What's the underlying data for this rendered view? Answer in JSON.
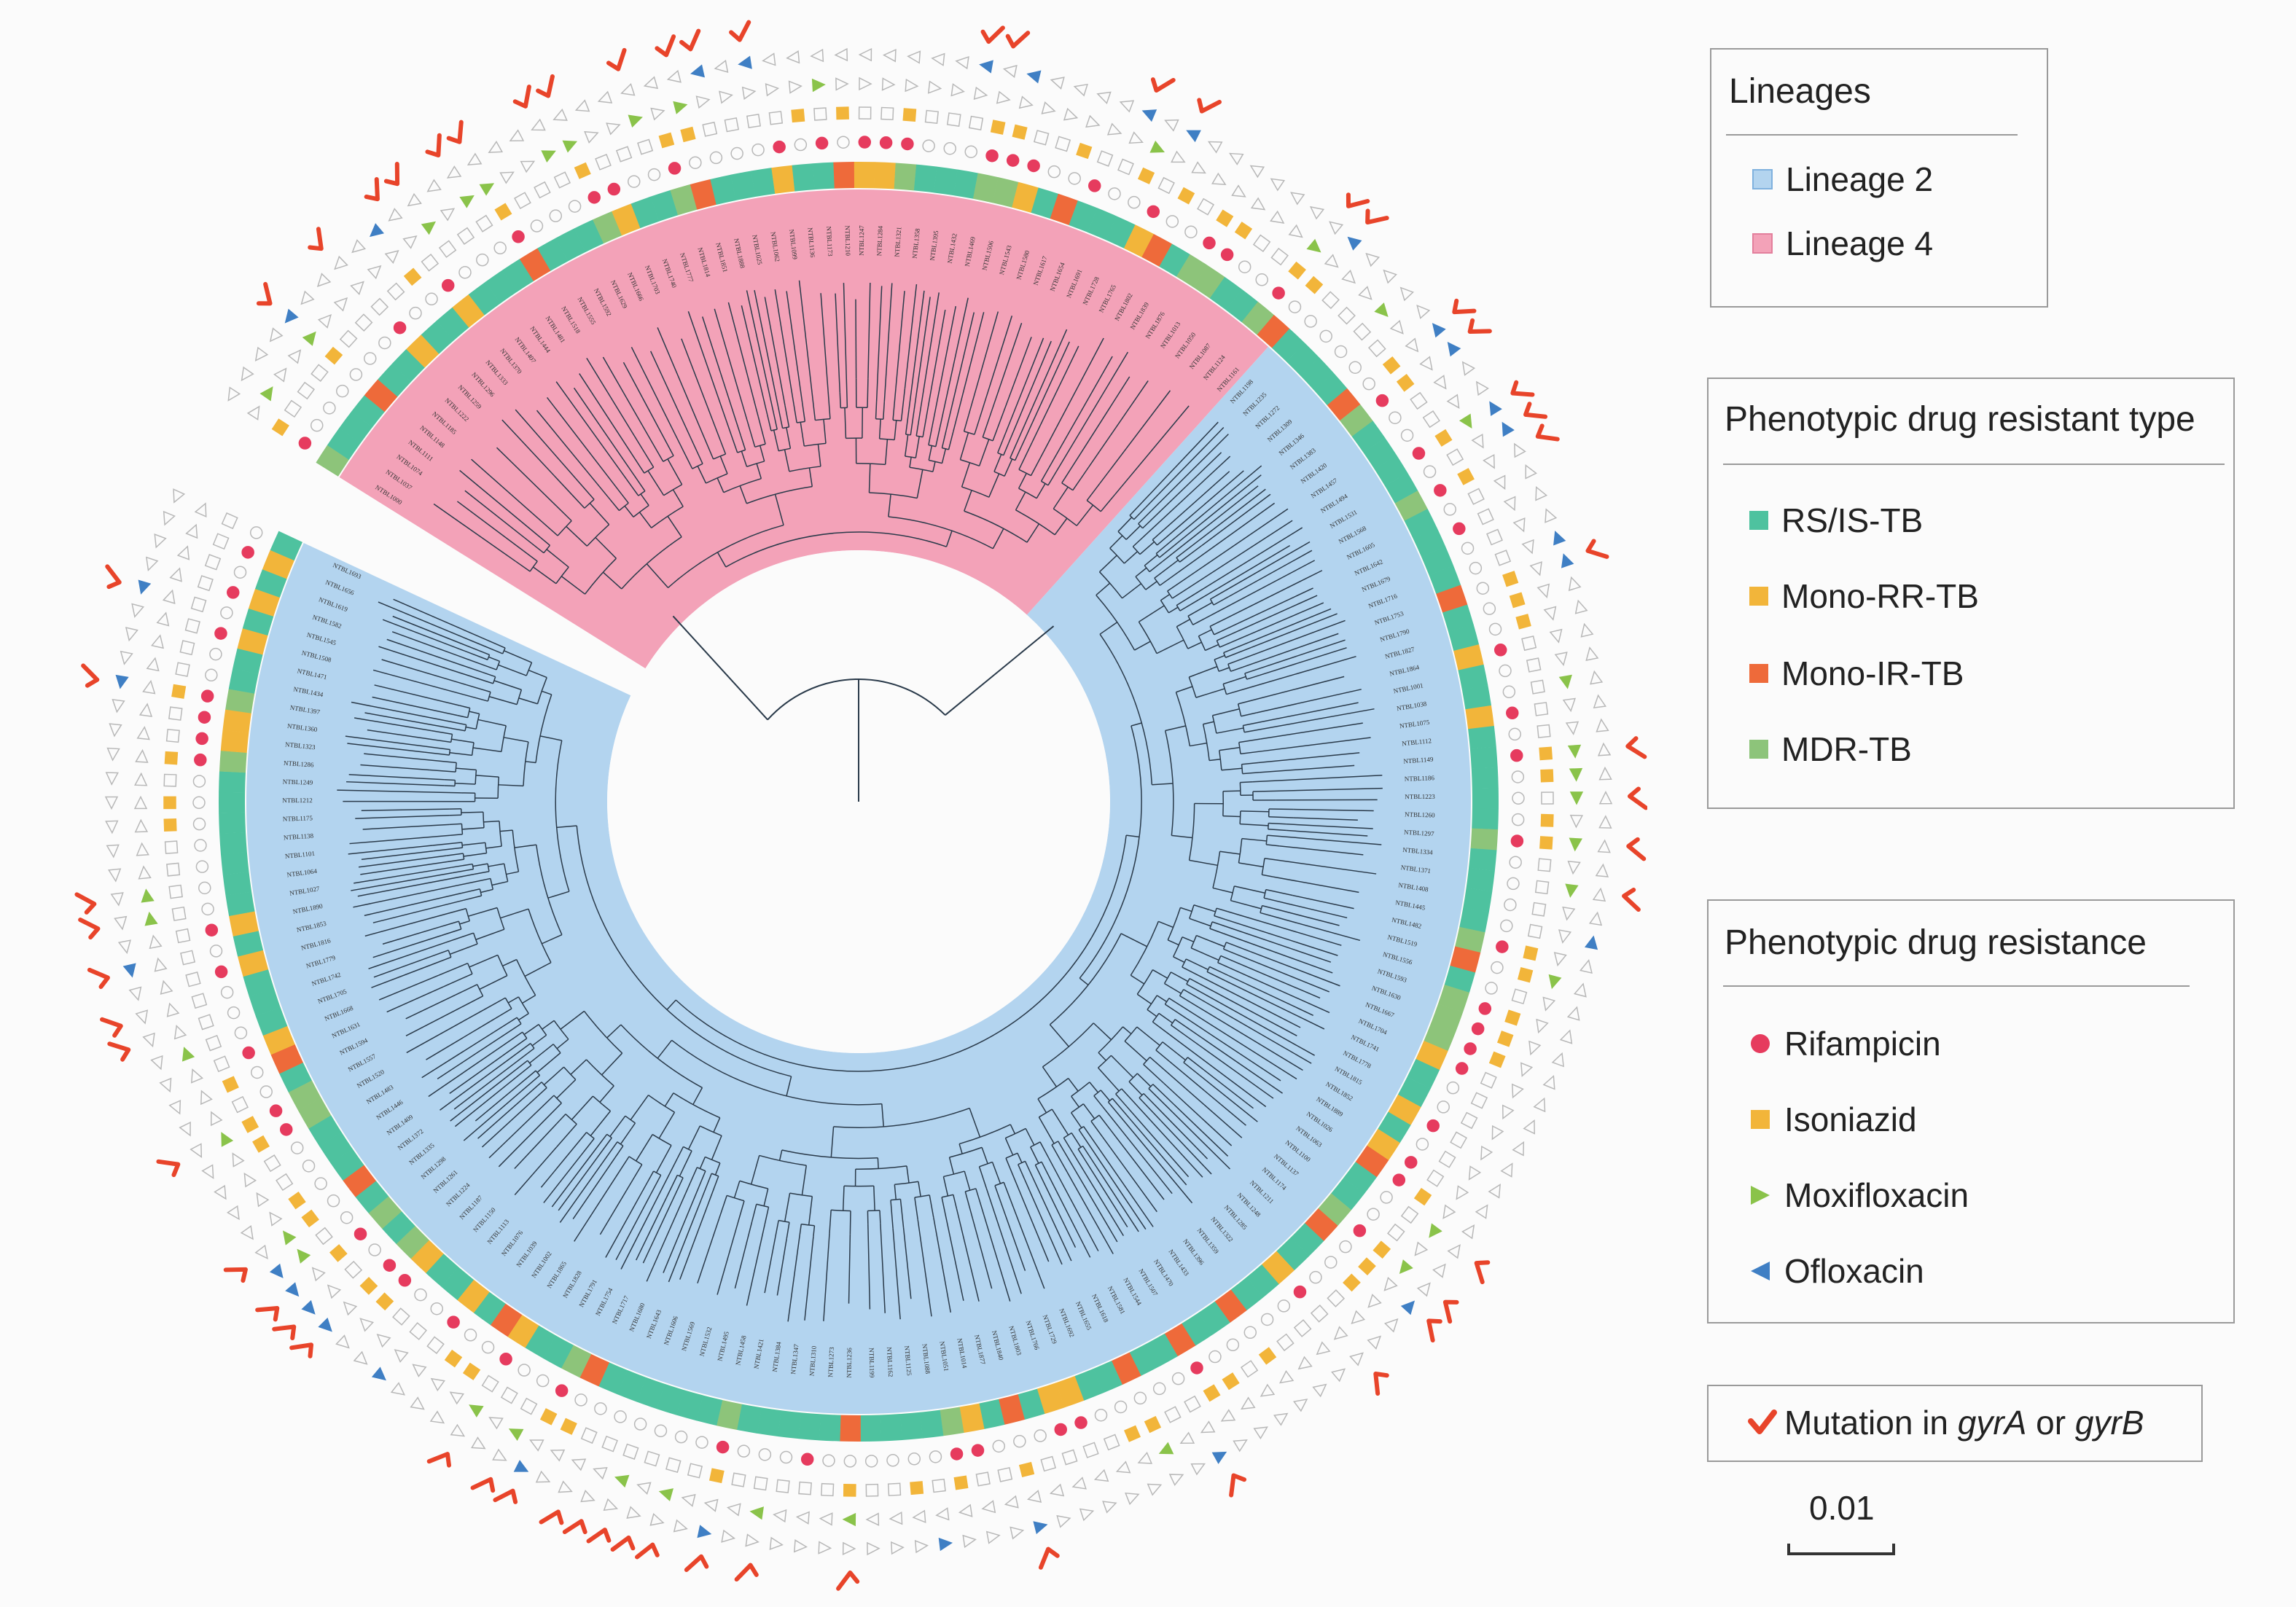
{
  "legend": {
    "lineages": {
      "title": "Lineages",
      "items": [
        {
          "label": "Lineage 2",
          "color": "#b3d4ef"
        },
        {
          "label": "Lineage 4",
          "color": "#f3a2b8"
        }
      ]
    },
    "resistant_type": {
      "title": "Phenotypic drug resistant type",
      "items": [
        {
          "label": "RS/IS-TB",
          "color": "#4ec29f"
        },
        {
          "label": "Mono-RR-TB",
          "color": "#f2b53a"
        },
        {
          "label": "Mono-IR-TB",
          "color": "#ee6a3a"
        },
        {
          "label": "MDR-TB",
          "color": "#8dc47a"
        }
      ]
    },
    "drug_resistance": {
      "title": "Phenotypic drug resistance",
      "items": [
        {
          "label": "Rifampicin",
          "color": "#e63b5e",
          "icon": "circle-icon"
        },
        {
          "label": "Isoniazid",
          "color": "#f2b53a",
          "icon": "square-icon"
        },
        {
          "label": "Moxifloxacin",
          "color": "#8ac34a",
          "icon": "triangle-right-icon"
        },
        {
          "label": "Ofloxacin",
          "color": "#3f7fc4",
          "icon": "triangle-left-icon"
        }
      ]
    },
    "mutation": {
      "prefix": "Mutation in ",
      "gene_a": "gyrA",
      "middle": " or ",
      "gene_b": "gyrB",
      "color": "#e8442a",
      "icon": "check-icon"
    }
  },
  "scale_bar": {
    "label": "0.01"
  },
  "colors": {
    "lineage2": "#b3d4ef",
    "lineage4": "#f3a2b8",
    "branch": "#2a3a4a",
    "empty_stroke": "#b8b8b8"
  }
}
